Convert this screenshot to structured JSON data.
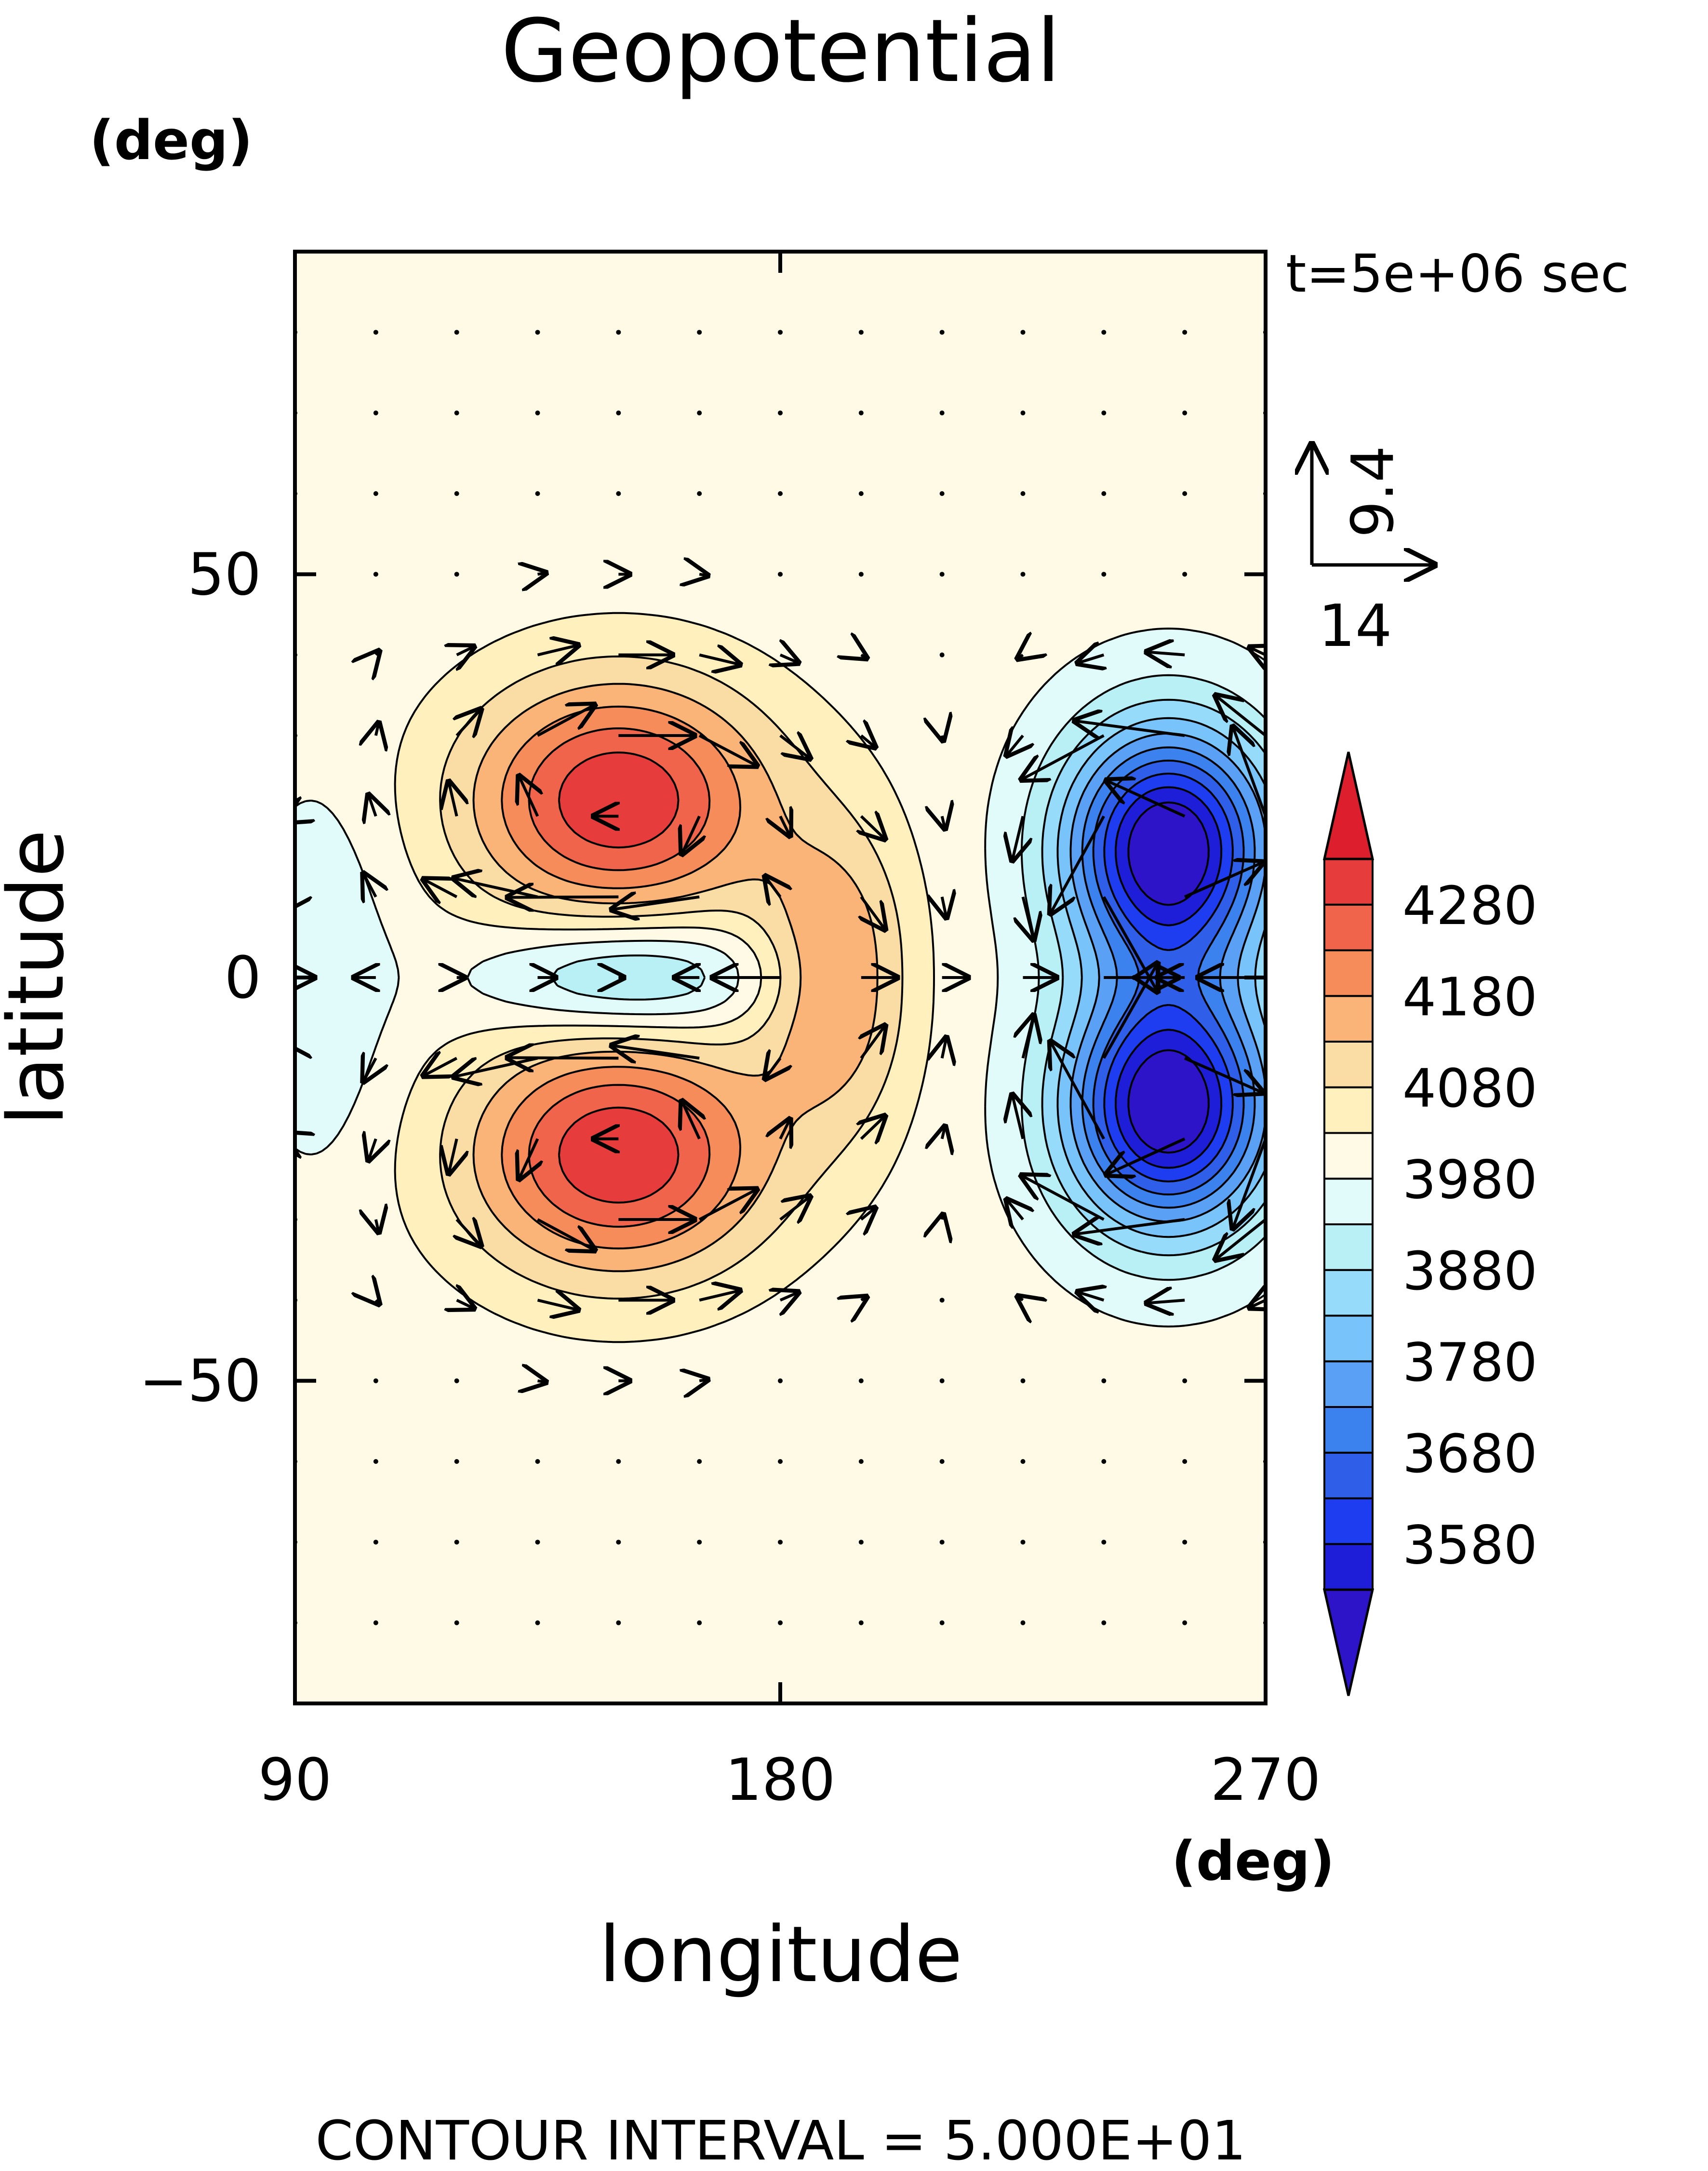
{
  "chart_data": {
    "type": "contour",
    "title": "Geopotential",
    "xlabel": "longitude",
    "ylabel": "latitude",
    "xunits": "(deg)",
    "yunits": "(deg)",
    "xlim": [
      90,
      270
    ],
    "ylim": [
      -90,
      90
    ],
    "xticks": [
      90,
      180,
      270
    ],
    "yticks": [
      -50,
      0,
      50
    ],
    "time_label": "t=5e+06 sec",
    "footer": "CONTOUR INTERVAL = 5.000E+01",
    "contour_interval": 50,
    "colorbar": {
      "labels": [
        "4280",
        "4180",
        "4080",
        "3980",
        "3880",
        "3780",
        "3680",
        "3580"
      ],
      "levels": [
        3530,
        3580,
        3630,
        3680,
        3730,
        3780,
        3830,
        3880,
        3930,
        3980,
        4030,
        4080,
        4130,
        4180,
        4230,
        4280,
        4330
      ],
      "colors": [
        "#1e1ed8",
        "#1e3cf0",
        "#2f5fe8",
        "#3c82ee",
        "#5aa0f5",
        "#78c3fa",
        "#96dcfa",
        "#b9f0f5",
        "#e1fafa",
        "#fffae6",
        "#fff0be",
        "#fadca5",
        "#fab478",
        "#f58c5a",
        "#f0644b",
        "#e63c3c"
      ],
      "under_color": "#2d14c8",
      "over_color": "#dc1e2d"
    },
    "vector_reference": {
      "u": "14",
      "v": "9.4"
    },
    "features": [
      {
        "kind": "high",
        "lon": 150,
        "lat": 22,
        "value": 4300
      },
      {
        "kind": "high",
        "lon": 150,
        "lat": -22,
        "value": 4300
      },
      {
        "kind": "low",
        "lon": 152,
        "lat": 0,
        "value": 3950
      },
      {
        "kind": "low",
        "lon": 252,
        "lat": 16,
        "value": 3520
      },
      {
        "kind": "low",
        "lon": 252,
        "lat": -16,
        "value": 3520
      },
      {
        "kind": "background",
        "value": 4000
      }
    ],
    "flow": "easterly along the equator west of 195E, westerly east of it; vectors circulate around the highs and lows"
  }
}
